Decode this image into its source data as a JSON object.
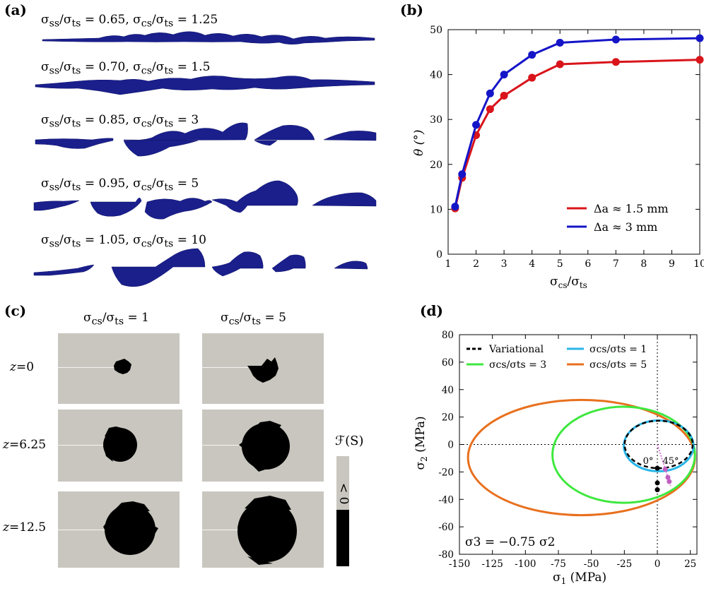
{
  "panels": {
    "a": {
      "label": "(a)",
      "rows": [
        {
          "text": "σss/σts = 0.65, σcs/σts = 1.25"
        },
        {
          "text": "σss/σts = 0.70, σcs/σts = 1.5"
        },
        {
          "text": "σss/σts = 0.85, σcs/σts = 3"
        },
        {
          "text": "σss/σts = 0.95, σcs/σts = 5"
        },
        {
          "text": "σss/σts = 1.05, σcs/σts = 10"
        }
      ],
      "fill_color": "#1a1f8c"
    },
    "b": {
      "label": "(b)"
    },
    "c": {
      "label": "(c)",
      "col_headers": [
        "σcs/σts = 1",
        "σcs/σts = 5"
      ],
      "row_labels": [
        "z=0",
        "z=6.25",
        "z=12.5"
      ],
      "colorbar": {
        "title": "ℱ(S)",
        "upper": "< 0",
        "lower": "≥ 0"
      },
      "colors": {
        "background": "#c8c6be",
        "damaged": "#000000"
      }
    },
    "d": {
      "label": "(d)"
    }
  },
  "chart_data": [
    {
      "id": "b",
      "type": "line",
      "title": "",
      "xlabel": "σcs/σts",
      "ylabel": "θ (°)",
      "xlim": [
        1,
        10
      ],
      "ylim": [
        0,
        50
      ],
      "xticks": [
        1,
        2,
        3,
        4,
        5,
        6,
        7,
        8,
        9,
        10
      ],
      "yticks": [
        0,
        10,
        20,
        30,
        40,
        50
      ],
      "legend_position": "bottom-right",
      "series": [
        {
          "name": "Δa ≈ 1.5 mm",
          "color": "#d9141a",
          "x": [
            1.25,
            1.5,
            2,
            2.5,
            3,
            4,
            5,
            7,
            10
          ],
          "y": [
            10.2,
            17,
            26.5,
            32.3,
            35.3,
            39.3,
            42.3,
            42.8,
            43.3
          ]
        },
        {
          "name": "Δa ≈ 3 mm",
          "color": "#1515c8",
          "x": [
            1.25,
            1.5,
            2,
            2.5,
            3,
            4,
            5,
            7,
            10
          ],
          "y": [
            10.6,
            17.8,
            28.8,
            35.8,
            40,
            44.4,
            47.1,
            47.8,
            48.1
          ]
        }
      ]
    },
    {
      "id": "d",
      "type": "line",
      "title": "",
      "xlabel": "σ1 (MPa)",
      "ylabel": "σ2 (MPa)",
      "xlim": [
        -150,
        30
      ],
      "ylim": [
        -80,
        80
      ],
      "xticks": [
        -150,
        -125,
        -100,
        -75,
        -50,
        -25,
        0,
        25
      ],
      "yticks": [
        -80,
        -60,
        -40,
        -20,
        0,
        20,
        40,
        60,
        80
      ],
      "legend_position": "top",
      "annotation": "σ3 = −0.75 σ2",
      "angle_labels": [
        "0°",
        "45°"
      ],
      "series": [
        {
          "name": "Variational",
          "color": "#000000",
          "dashed": true,
          "cx": 1,
          "cy": 0,
          "rx": 25.8,
          "ry": 17.3
        },
        {
          "name": "σcs/σts = 1",
          "color": "#29b6e8",
          "cx": 1,
          "cy": -1,
          "rx": 26.4,
          "ry": 18.5
        },
        {
          "name": "σcs/σts = 3",
          "color": "#3ee83e",
          "cx": -25.5,
          "cy": -7.5,
          "rx": 54,
          "ry": 35
        },
        {
          "name": "σcs/σts = 5",
          "color": "#e8701e",
          "cx": -57.5,
          "cy": -9.5,
          "rx": 86,
          "ry": 42
        }
      ]
    }
  ]
}
